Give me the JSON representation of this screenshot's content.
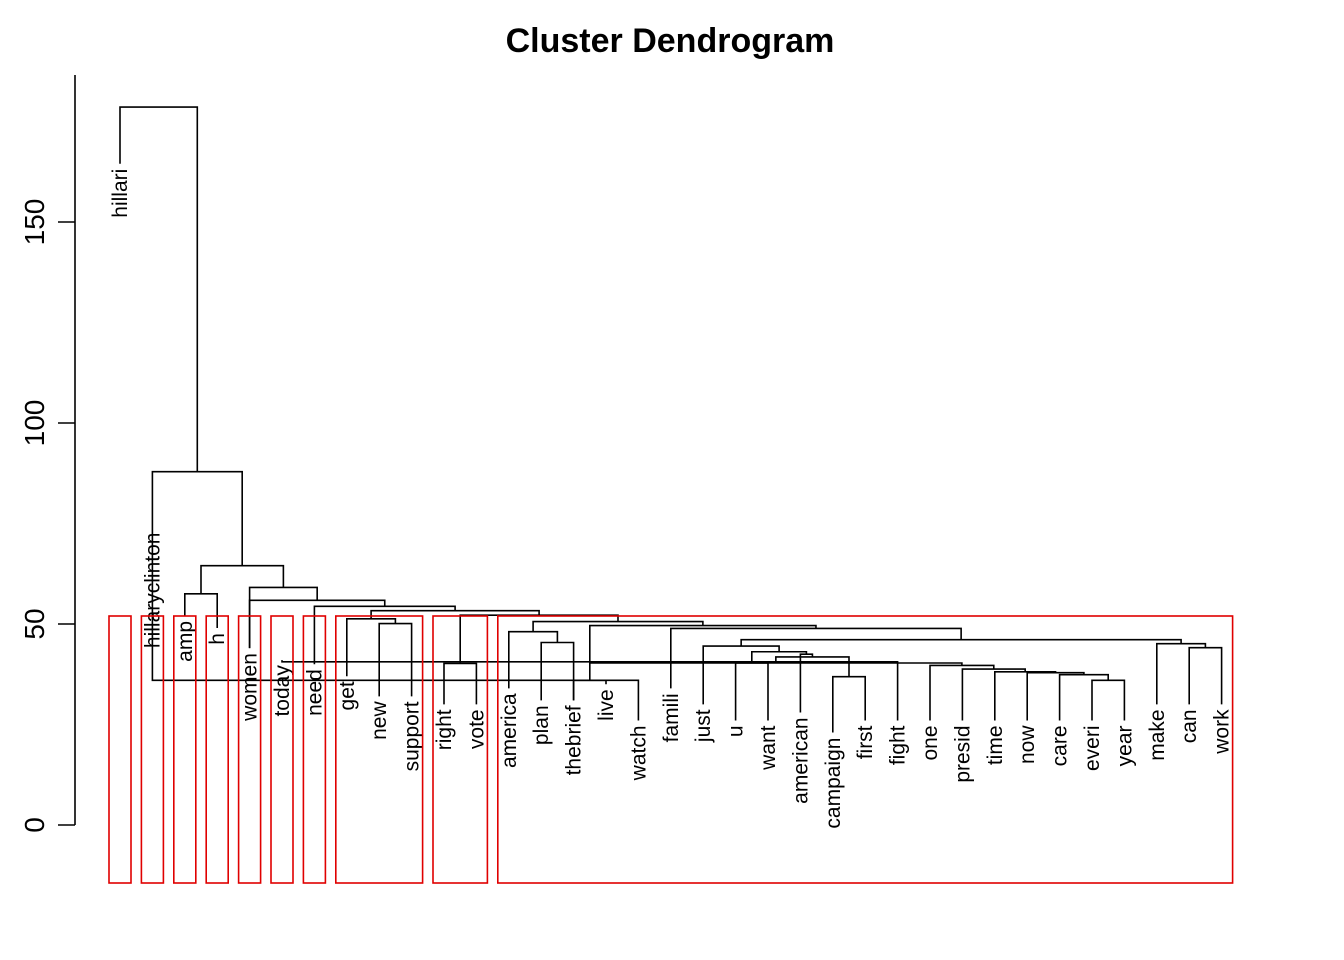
{
  "chart_data": {
    "type": "dendrogram",
    "title": "Cluster Dendrogram",
    "ylim": [
      0,
      185
    ],
    "y_ticks": [
      0,
      50,
      100,
      150
    ],
    "leaves": [
      {
        "name": "hillari",
        "h": 164.5
      },
      {
        "name": "hillaryclinton",
        "h": 74
      },
      {
        "name": "amp",
        "h": 52
      },
      {
        "name": "h",
        "h": 49
      },
      {
        "name": "women",
        "h": 44
      },
      {
        "name": "today",
        "h": 41
      },
      {
        "name": "need",
        "h": 40
      },
      {
        "name": "get",
        "h": 37
      },
      {
        "name": "new",
        "h": 32
      },
      {
        "name": "support",
        "h": 32
      },
      {
        "name": "right",
        "h": 30
      },
      {
        "name": "vote",
        "h": 30
      },
      {
        "name": "america",
        "h": 34
      },
      {
        "name": "plan",
        "h": 31
      },
      {
        "name": "thebrief",
        "h": 31
      },
      {
        "name": "live",
        "h": 35
      },
      {
        "name": "watch",
        "h": 26
      },
      {
        "name": "famili",
        "h": 34
      },
      {
        "name": "just",
        "h": 30
      },
      {
        "name": "u",
        "h": 26
      },
      {
        "name": "want",
        "h": 26
      },
      {
        "name": "american",
        "h": 28
      },
      {
        "name": "campaign",
        "h": 23
      },
      {
        "name": "first",
        "h": 26
      },
      {
        "name": "fight",
        "h": 26
      },
      {
        "name": "one",
        "h": 26
      },
      {
        "name": "presid",
        "h": 26
      },
      {
        "name": "time",
        "h": 26
      },
      {
        "name": "now",
        "h": 26
      },
      {
        "name": "care",
        "h": 26
      },
      {
        "name": "everi",
        "h": 26
      },
      {
        "name": "year",
        "h": 26
      },
      {
        "name": "make",
        "h": 30
      },
      {
        "name": "can",
        "h": 30
      },
      {
        "name": "work",
        "h": 30
      }
    ],
    "merges": [
      {
        "children": [
          "L11",
          "L12"
        ],
        "height": 40.2
      },
      {
        "children": [
          "L9",
          "L10"
        ],
        "height": 50.1
      },
      {
        "children": [
          "L15",
          "L16"
        ],
        "height": 36
      },
      {
        "children": [
          "L17",
          "L2"
        ],
        "height": 36
      },
      {
        "children": [
          "L20",
          "L21"
        ],
        "height": 40.3
      },
      {
        "children": [
          "L23",
          "L24"
        ],
        "height": 36.9
      },
      {
        "children": [
          "L31",
          "L32"
        ],
        "height": 36
      },
      {
        "children": [
          "L34",
          "L35"
        ],
        "height": 44.1
      },
      {
        "children": [
          "L14",
          "L15"
        ],
        "height": 45.4
      },
      {
        "children": [
          "L25",
          "L6"
        ],
        "height": 40.6
      },
      {
        "children": [
          "L8",
          "N2"
        ],
        "height": 51.3
      },
      {
        "children": [
          "L30",
          "N7"
        ],
        "height": 37.4
      },
      {
        "children": [
          "L29",
          "N12"
        ],
        "height": 37.9
      },
      {
        "children": [
          "L28",
          "N13"
        ],
        "height": 38.1
      },
      {
        "children": [
          "L27",
          "N14"
        ],
        "height": 38.8
      },
      {
        "children": [
          "L26",
          "N15"
        ],
        "height": 39.7
      },
      {
        "children": [
          "N10",
          "N16"
        ],
        "height": 40.3
      },
      {
        "children": [
          "N6",
          "N17"
        ],
        "height": 41.8
      },
      {
        "children": [
          "L22",
          "N18"
        ],
        "height": 42.5
      },
      {
        "children": [
          "N5",
          "N19"
        ],
        "height": 43.1
      },
      {
        "children": [
          "L33",
          "N8"
        ],
        "height": 45.1
      },
      {
        "children": [
          "L19",
          "N20"
        ],
        "height": 44.5
      },
      {
        "children": [
          "L13",
          "N9"
        ],
        "height": 48.1
      },
      {
        "children": [
          "N22",
          "N21"
        ],
        "height": 46.1
      },
      {
        "children": [
          "L18",
          "N24"
        ],
        "height": 48.9
      },
      {
        "children": [
          "N3",
          "N25"
        ],
        "height": 49.6
      },
      {
        "children": [
          "N23",
          "N26"
        ],
        "height": 50.6
      },
      {
        "children": [
          "N1",
          "N27"
        ],
        "height": 52.2
      },
      {
        "children": [
          "N11",
          "N28"
        ],
        "height": 53.3
      },
      {
        "children": [
          "L7",
          "N29"
        ],
        "height": 54.4
      },
      {
        "children": [
          "L5",
          "N30"
        ],
        "height": 55.9
      },
      {
        "children": [
          "L3",
          "L4"
        ],
        "height": 57.5
      },
      {
        "children": [
          "L6x",
          "N31"
        ],
        "height": 59.1
      },
      {
        "children": [
          "N32",
          "N33"
        ],
        "height": 64.5
      },
      {
        "children": [
          "L2x",
          "N34"
        ],
        "height": 87.9
      },
      {
        "children": [
          "L1",
          "N35"
        ],
        "height": 178.6
      }
    ],
    "clusters": [
      {
        "leaves": [
          1,
          1
        ]
      },
      {
        "leaves": [
          2,
          2
        ]
      },
      {
        "leaves": [
          3,
          3
        ]
      },
      {
        "leaves": [
          4,
          4
        ]
      },
      {
        "leaves": [
          5,
          5
        ]
      },
      {
        "leaves": [
          6,
          6
        ]
      },
      {
        "leaves": [
          7,
          7
        ]
      },
      {
        "leaves": [
          8,
          10
        ]
      },
      {
        "leaves": [
          11,
          12
        ]
      },
      {
        "leaves": [
          13,
          35
        ]
      }
    ]
  }
}
